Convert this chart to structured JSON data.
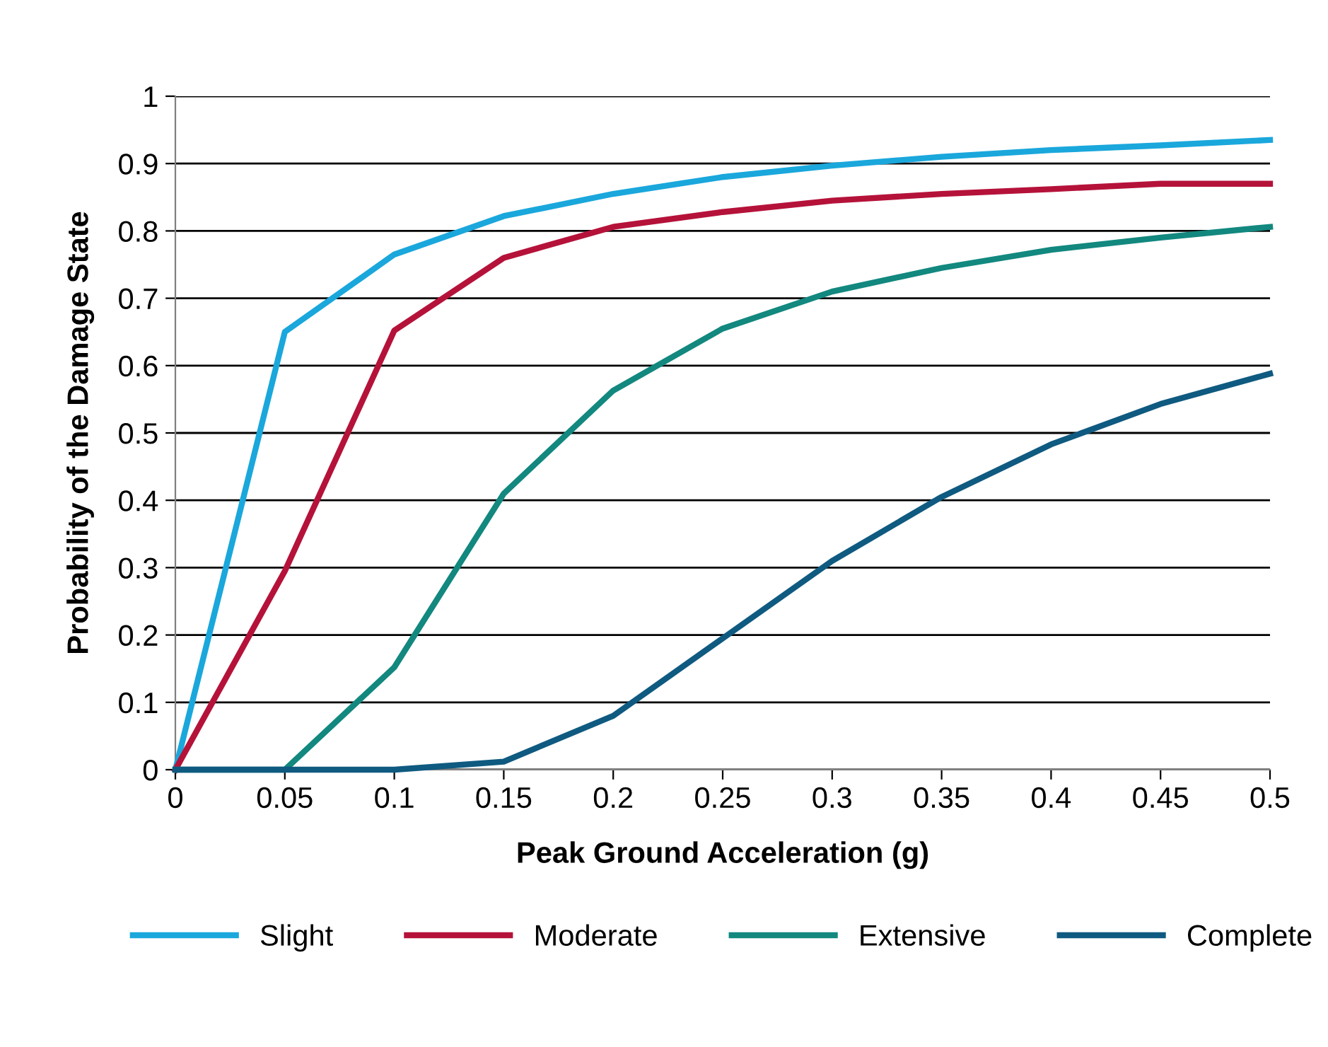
{
  "chart_data": {
    "type": "line",
    "xlabel": "Peak Ground Acceleration (g)",
    "ylabel": "Probability of the Damage State",
    "x": [
      0,
      0.05,
      0.1,
      0.15,
      0.2,
      0.25,
      0.3,
      0.35,
      0.4,
      0.45,
      0.5
    ],
    "series": [
      {
        "name": "Slight",
        "color": "#1aa7dc",
        "values": [
          0,
          0.65,
          0.765,
          0.822,
          0.855,
          0.88,
          0.897,
          0.91,
          0.92,
          0.927,
          0.935
        ]
      },
      {
        "name": "Moderate",
        "color": "#b5123a",
        "values": [
          0,
          0.295,
          0.652,
          0.76,
          0.806,
          0.828,
          0.845,
          0.855,
          0.862,
          0.87,
          0.87
        ]
      },
      {
        "name": "Extensive",
        "color": "#12887f",
        "values": [
          0,
          0,
          0.152,
          0.41,
          0.563,
          0.655,
          0.71,
          0.745,
          0.772,
          0.79,
          0.806
        ]
      },
      {
        "name": "Complete",
        "color": "#0f5a80",
        "values": [
          0,
          0,
          0,
          0.012,
          0.08,
          0.195,
          0.31,
          0.405,
          0.483,
          0.543,
          0.588
        ]
      }
    ],
    "xlim": [
      0,
      0.5
    ],
    "xticks": [
      0,
      0.05,
      0.1,
      0.15,
      0.2,
      0.25,
      0.3,
      0.35,
      0.4,
      0.45,
      0.5
    ],
    "ylim": [
      0,
      1
    ],
    "yticks": [
      0,
      0.1,
      0.2,
      0.3,
      0.4,
      0.5,
      0.6,
      0.7,
      0.8,
      0.9,
      1
    ],
    "grid": "y",
    "legend": "bottom",
    "marker": "none",
    "line_style": "solid"
  }
}
